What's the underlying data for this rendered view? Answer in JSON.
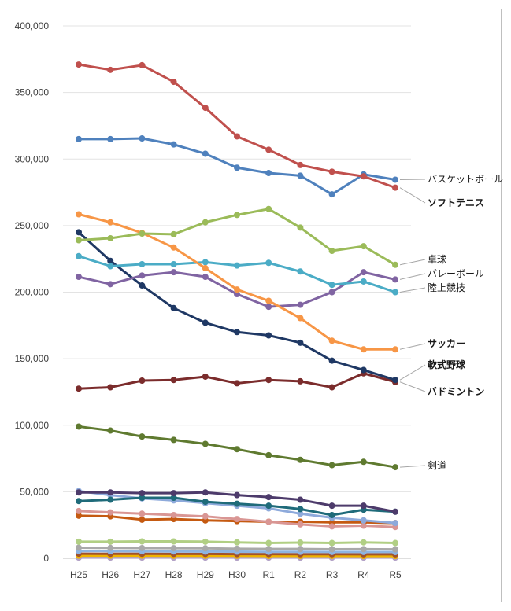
{
  "chart_data": {
    "type": "line",
    "categories": [
      "H25",
      "H26",
      "H27",
      "H28",
      "H29",
      "H30",
      "R1",
      "R2",
      "R3",
      "R4",
      "R5"
    ],
    "ylim": [
      0,
      400000
    ],
    "yticks": [
      "0",
      "50,000",
      "100,000",
      "150,000",
      "200,000",
      "250,000",
      "300,000",
      "350,000",
      "400,000"
    ],
    "grid": true,
    "series": [
      {
        "name": "ソフトテニス",
        "color": "#c0504d",
        "labeled": true,
        "values": [
          371000,
          367000,
          370500,
          358000,
          338500,
          317000,
          307000,
          295500,
          290500,
          287000,
          278500
        ]
      },
      {
        "name": "バスケットボール",
        "color": "#4f81bd",
        "labeled": true,
        "values": [
          315000,
          315000,
          315500,
          311000,
          304000,
          293500,
          289500,
          287500,
          273500,
          288500,
          284500
        ]
      },
      {
        "name": "卓球",
        "color": "#9bbb59",
        "labeled": true,
        "values": [
          239000,
          240500,
          244000,
          243500,
          252500,
          258000,
          262500,
          248500,
          231000,
          234500,
          220500
        ]
      },
      {
        "name": "サッカー",
        "color": "#f79646",
        "labeled": true,
        "values": [
          258500,
          252500,
          244500,
          233500,
          218000,
          202000,
          193500,
          180500,
          163500,
          157000,
          157000
        ]
      },
      {
        "name": "陸上競技",
        "color": "#4bacc6",
        "labeled": true,
        "values": [
          227000,
          219500,
          221000,
          221000,
          222500,
          220000,
          222000,
          215500,
          205500,
          208000,
          200000
        ]
      },
      {
        "name": "バレーボール",
        "color": "#8064a2",
        "labeled": true,
        "values": [
          211500,
          206000,
          212500,
          215000,
          211500,
          198500,
          189000,
          190500,
          200000,
          215000,
          209500
        ]
      },
      {
        "name": "軟式野球",
        "color": "#1f3864",
        "labeled": true,
        "values": [
          245000,
          223500,
          205000,
          188000,
          177000,
          170000,
          167500,
          162000,
          148500,
          141500,
          134000
        ]
      },
      {
        "name": "バドミントン",
        "color": "#7b2c2c",
        "labeled": true,
        "values": [
          127500,
          128500,
          133500,
          134000,
          136500,
          131500,
          134000,
          133000,
          128500,
          139000,
          132500
        ]
      },
      {
        "name": "剣道",
        "color": "#5f7a30",
        "labeled": true,
        "values": [
          99000,
          96000,
          91500,
          89000,
          86000,
          82000,
          77500,
          74000,
          70000,
          72500,
          68500
        ]
      },
      {
        "name": "",
        "color": "#4d3b6b",
        "labeled": false,
        "values": [
          49500,
          49500,
          49000,
          49000,
          49500,
          47500,
          46000,
          44000,
          39500,
          39500,
          35000
        ]
      },
      {
        "name": "",
        "color": "#1f6b7a",
        "labeled": false,
        "values": [
          43000,
          44000,
          45500,
          45500,
          42500,
          41000,
          39500,
          37000,
          32500,
          36500,
          35000
        ]
      },
      {
        "name": "",
        "color": "#8eaadb",
        "labeled": false,
        "values": [
          50500,
          47500,
          45000,
          43500,
          41500,
          39500,
          37500,
          33500,
          30500,
          28500,
          26500
        ]
      },
      {
        "name": "",
        "color": "#d99694",
        "labeled": false,
        "values": [
          35500,
          34500,
          33500,
          32500,
          31500,
          29500,
          27500,
          25500,
          24000,
          24500,
          23500
        ]
      },
      {
        "name": "",
        "color": "#c55a11",
        "labeled": false,
        "values": [
          32000,
          31500,
          29000,
          29500,
          28500,
          28000,
          27500,
          27500,
          27000,
          27000,
          26500
        ]
      },
      {
        "name": "",
        "color": "#b1cf84",
        "labeled": false,
        "values": [
          12500,
          12500,
          12700,
          12700,
          12500,
          12000,
          11500,
          11800,
          11500,
          12000,
          11500
        ]
      },
      {
        "name": "",
        "color": "#a9a9a9",
        "labeled": false,
        "values": [
          8000,
          7800,
          7700,
          7600,
          7500,
          7200,
          7000,
          7000,
          6800,
          6900,
          6700
        ]
      },
      {
        "name": "",
        "color": "#8db4e2",
        "labeled": false,
        "values": [
          5500,
          5400,
          5300,
          5200,
          5100,
          5000,
          4900,
          4900,
          4800,
          4800,
          4700
        ]
      },
      {
        "name": "",
        "color": "#a0522d",
        "labeled": false,
        "values": [
          3500,
          3400,
          3400,
          3300,
          3300,
          3200,
          3200,
          3100,
          3100,
          3000,
          3000
        ]
      },
      {
        "name": "",
        "color": "#f0b400",
        "labeled": false,
        "values": [
          2000,
          2000,
          2000,
          1900,
          1900,
          1900,
          1800,
          1800,
          1800,
          1700,
          1700
        ]
      },
      {
        "name": "",
        "color": "#b3a2c7",
        "labeled": false,
        "values": [
          500,
          500,
          500,
          500,
          500,
          500,
          500,
          500,
          500,
          500,
          500
        ]
      }
    ]
  }
}
